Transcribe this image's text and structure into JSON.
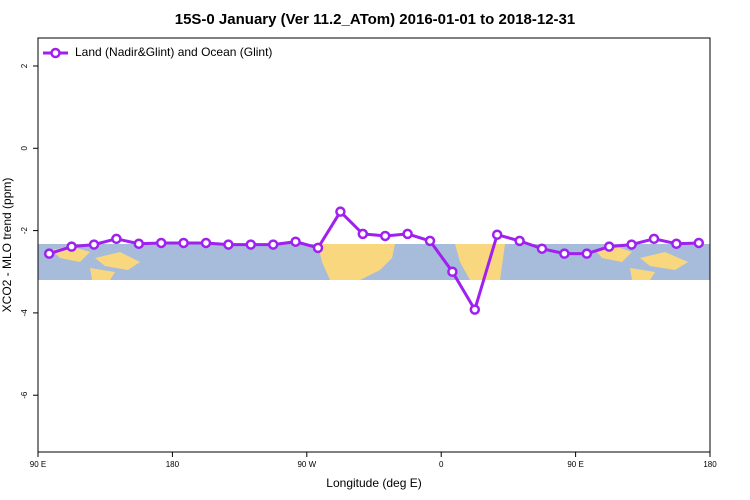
{
  "chart_data": {
    "type": "line",
    "title": "15S-0 January (Ver 11.2_ATom)   2016-01-01 to 2018-12-31",
    "x_label": "Longitude (deg E)",
    "y_label": "XCO2 - MLO trend (ppm)",
    "xlim": [
      90,
      540
    ],
    "ylim": [
      -7.38,
      2.68
    ],
    "xticks": [
      {
        "value": 90,
        "label": "90 E"
      },
      180,
      {
        "value": 270,
        "label": "90 W"
      },
      {
        "value": 360,
        "label": "0"
      },
      {
        "value": 450,
        "label": "90 E"
      },
      {
        "value": 540,
        "label": "180"
      }
    ],
    "yticks": [
      2,
      0,
      -2,
      -4,
      -6
    ],
    "legend": "top-left",
    "x": [
      97.5,
      112.5,
      127.5,
      142.5,
      157.5,
      172.5,
      187.5,
      202.5,
      217.5,
      232.5,
      247.5,
      262.5,
      277.5,
      292.5,
      307.5,
      322.5,
      337.5,
      352.5,
      367.5,
      382.5,
      397.5,
      412.5,
      427.5,
      442.5,
      457.5,
      472.5,
      487.5,
      502.5,
      517.5,
      532.5
    ],
    "series": [
      {
        "name": "Land (Nadir&Glint) and Ocean (Glint)",
        "color": "#a020f0",
        "values": [
          -2.56,
          -2.39,
          -2.34,
          -2.2,
          -2.32,
          -2.3,
          -2.3,
          -2.3,
          -2.34,
          -2.34,
          -2.34,
          -2.27,
          -2.42,
          -1.54,
          -2.08,
          -2.13,
          -2.08,
          -2.25,
          -3.0,
          -3.92,
          -2.1,
          -2.25,
          -2.44,
          -2.56,
          -2.56,
          -2.39,
          -2.34,
          -2.2,
          -2.32,
          -2.3
        ]
      }
    ]
  }
}
